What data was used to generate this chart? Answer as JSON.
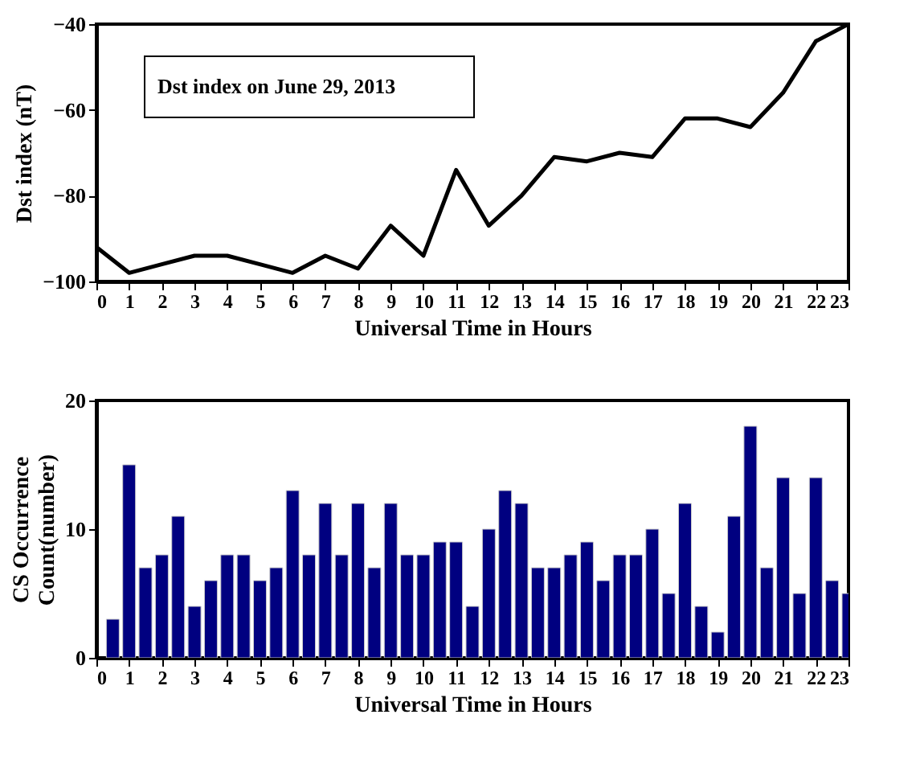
{
  "chart_data": [
    {
      "type": "line",
      "xlabel": "Universal Time in Hours",
      "ylabel": "Dst index (nT)",
      "annotations": [
        "Dst index on June 29, 2013"
      ],
      "x": [
        0,
        1,
        2,
        3,
        4,
        5,
        6,
        7,
        8,
        9,
        10,
        11,
        12,
        13,
        14,
        15,
        16,
        17,
        18,
        19,
        20,
        21,
        22,
        23
      ],
      "series": [
        {
          "color": "#000000",
          "values": [
            -92,
            -98,
            -96,
            -94,
            -94,
            -96,
            -98,
            -94,
            -97,
            -87,
            -94,
            -74,
            -87,
            -80,
            -71,
            -72,
            -70,
            -71,
            -62,
            -62,
            -64,
            -56,
            -44,
            -40
          ]
        }
      ],
      "xlim": [
        0,
        23
      ],
      "xticks": [
        0,
        1,
        2,
        3,
        4,
        5,
        6,
        7,
        8,
        9,
        10,
        11,
        12,
        13,
        14,
        15,
        16,
        17,
        18,
        19,
        20,
        21,
        22,
        23
      ],
      "ylim": [
        -100,
        -40
      ],
      "yticks": [
        -100,
        -80,
        -60,
        -40
      ],
      "grid": false
    },
    {
      "type": "bar",
      "xlabel": "Universal Time in Hours",
      "ylabel": "CS Occurrence Count(number)",
      "x": [
        0.5,
        1,
        1.5,
        2,
        2.5,
        3,
        3.5,
        4,
        4.5,
        5,
        5.5,
        6,
        6.5,
        7,
        7.5,
        8,
        8.5,
        9,
        9.5,
        10,
        10.5,
        11,
        11.5,
        12,
        12.5,
        13,
        13.5,
        14,
        14.5,
        15,
        15.5,
        16,
        16.5,
        17,
        17.5,
        18,
        18.5,
        19,
        19.5,
        20,
        20.5,
        21,
        21.5,
        22,
        22.5,
        23
      ],
      "series": [
        {
          "color": "#000080",
          "values": [
            3,
            15,
            7,
            8,
            11,
            4,
            6,
            8,
            8,
            6,
            7,
            13,
            8,
            12,
            8,
            12,
            7,
            12,
            8,
            8,
            9,
            9,
            4,
            10,
            13,
            12,
            7,
            7,
            8,
            9,
            6,
            8,
            8,
            10,
            5,
            12,
            4,
            2,
            11,
            18,
            7,
            14,
            5,
            14,
            6,
            5
          ]
        }
      ],
      "xlim": [
        0,
        23
      ],
      "xticks": [
        0,
        1,
        2,
        3,
        4,
        5,
        6,
        7,
        8,
        9,
        10,
        11,
        12,
        13,
        14,
        15,
        16,
        17,
        18,
        19,
        20,
        21,
        22,
        23
      ],
      "ylim": [
        0,
        20
      ],
      "yticks": [
        0,
        10,
        20
      ],
      "grid": false
    }
  ]
}
